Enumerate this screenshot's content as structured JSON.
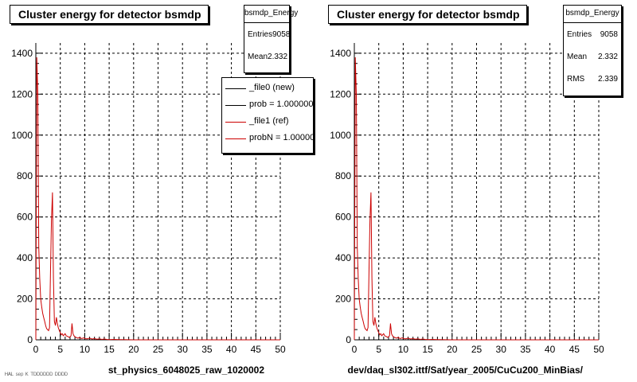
{
  "footer_text": "ᴴᴬᴸ ˢᵉᵖ ᴷ ᵀᴰᴰᴰᴰᴰᴰ ᴰᴰᴰᴰ",
  "chart_data": [
    {
      "type": "line",
      "title": "Cluster energy for detector bsmdp",
      "xlabel": "st_physics_6048025_raw_1020002",
      "ylabel": "",
      "xlim": [
        0,
        50
      ],
      "ylim": [
        0,
        1450
      ],
      "x_ticks": [
        0,
        5,
        10,
        15,
        20,
        25,
        30,
        35,
        40,
        45,
        50
      ],
      "y_ticks": [
        0,
        200,
        400,
        600,
        800,
        1000,
        1200,
        1400
      ],
      "grid": true,
      "stats": {
        "name": "bsmdp_Energy",
        "entries_label": "Entries",
        "entries": "9058",
        "mean_label": "Mean",
        "mean": "2.332"
      },
      "legend": {
        "position": "top-right",
        "entries": [
          {
            "label": "_file0 (new)",
            "color": "#000000"
          },
          {
            "label": "prob = 1.000000",
            "color": "#000000"
          },
          {
            "label": "_file1 (ref)",
            "color": "#cc0000"
          },
          {
            "label": "probN = 1.000000",
            "color": "#cc0000"
          }
        ]
      },
      "series": [
        {
          "name": "_file1 (ref)",
          "color": "#cc0000",
          "x": [
            0.0,
            0.2,
            0.4,
            0.6,
            0.8,
            1.0,
            1.2,
            1.4,
            1.6,
            1.8,
            2.0,
            2.2,
            2.4,
            2.6,
            2.8,
            3.0,
            3.2,
            3.4,
            3.6,
            3.8,
            4.0,
            4.2,
            4.4,
            4.6,
            4.8,
            5.0,
            5.2,
            5.4,
            5.6,
            5.8,
            6.0,
            6.2,
            6.4,
            6.6,
            6.8,
            7.0,
            7.2,
            7.4,
            7.6,
            7.8,
            8.0,
            8.2,
            8.4,
            8.6,
            8.8,
            9.0,
            9.2,
            9.4,
            9.6,
            9.8,
            10.0,
            10.5,
            11.0,
            11.5,
            12.0,
            12.5,
            13.0,
            13.5,
            14.0,
            14.5,
            15.0,
            16.0,
            17.0,
            18.0,
            20.0,
            25.0,
            30.0,
            40.0,
            50.0
          ],
          "y": [
            0,
            1380,
            1200,
            450,
            300,
            200,
            160,
            130,
            110,
            90,
            70,
            55,
            50,
            45,
            60,
            330,
            580,
            720,
            300,
            90,
            70,
            110,
            80,
            60,
            45,
            35,
            25,
            30,
            20,
            25,
            30,
            20,
            18,
            15,
            12,
            15,
            20,
            80,
            30,
            20,
            15,
            12,
            10,
            8,
            10,
            12,
            8,
            6,
            8,
            10,
            6,
            5,
            8,
            4,
            6,
            3,
            5,
            2,
            4,
            2,
            1,
            2,
            1,
            1,
            0,
            0,
            0,
            0,
            0
          ]
        }
      ]
    },
    {
      "type": "line",
      "title": "Cluster energy for detector bsmdp",
      "xlabel": "dev/daq_sl302.ittf/Sat/year_2005/CuCu200_MinBias/",
      "ylabel": "",
      "xlim": [
        0,
        50
      ],
      "ylim": [
        0,
        1450
      ],
      "x_ticks": [
        0,
        5,
        10,
        15,
        20,
        25,
        30,
        35,
        40,
        45,
        50
      ],
      "y_ticks": [
        0,
        200,
        400,
        600,
        800,
        1000,
        1200,
        1400
      ],
      "grid": true,
      "stats": {
        "name": "bsmdp_Energy",
        "entries_label": "Entries",
        "entries": "9058",
        "mean_label": "Mean",
        "mean": "2.332",
        "rms_label": "RMS",
        "rms": "2.339"
      },
      "series": [
        {
          "color": "#cc0000",
          "x": [
            0.0,
            0.2,
            0.4,
            0.6,
            0.8,
            1.0,
            1.2,
            1.4,
            1.6,
            1.8,
            2.0,
            2.2,
            2.4,
            2.6,
            2.8,
            3.0,
            3.2,
            3.4,
            3.6,
            3.8,
            4.0,
            4.2,
            4.4,
            4.6,
            4.8,
            5.0,
            5.2,
            5.4,
            5.6,
            5.8,
            6.0,
            6.2,
            6.4,
            6.6,
            6.8,
            7.0,
            7.2,
            7.4,
            7.6,
            7.8,
            8.0,
            8.2,
            8.4,
            8.6,
            8.8,
            9.0,
            9.2,
            9.4,
            9.6,
            9.8,
            10.0,
            10.5,
            11.0,
            11.5,
            12.0,
            12.5,
            13.0,
            13.5,
            14.0,
            14.5,
            15.0,
            16.0,
            17.0,
            18.0,
            20.0,
            25.0,
            30.0,
            40.0,
            50.0
          ],
          "y": [
            0,
            1380,
            1200,
            450,
            300,
            200,
            160,
            130,
            110,
            90,
            70,
            55,
            50,
            45,
            60,
            330,
            580,
            720,
            300,
            90,
            70,
            110,
            80,
            60,
            45,
            35,
            25,
            30,
            20,
            25,
            30,
            20,
            18,
            15,
            12,
            15,
            20,
            80,
            30,
            20,
            15,
            12,
            10,
            8,
            10,
            12,
            8,
            6,
            8,
            10,
            6,
            5,
            8,
            4,
            6,
            3,
            5,
            2,
            4,
            2,
            1,
            2,
            1,
            1,
            0,
            0,
            0,
            0,
            0
          ]
        }
      ]
    }
  ]
}
